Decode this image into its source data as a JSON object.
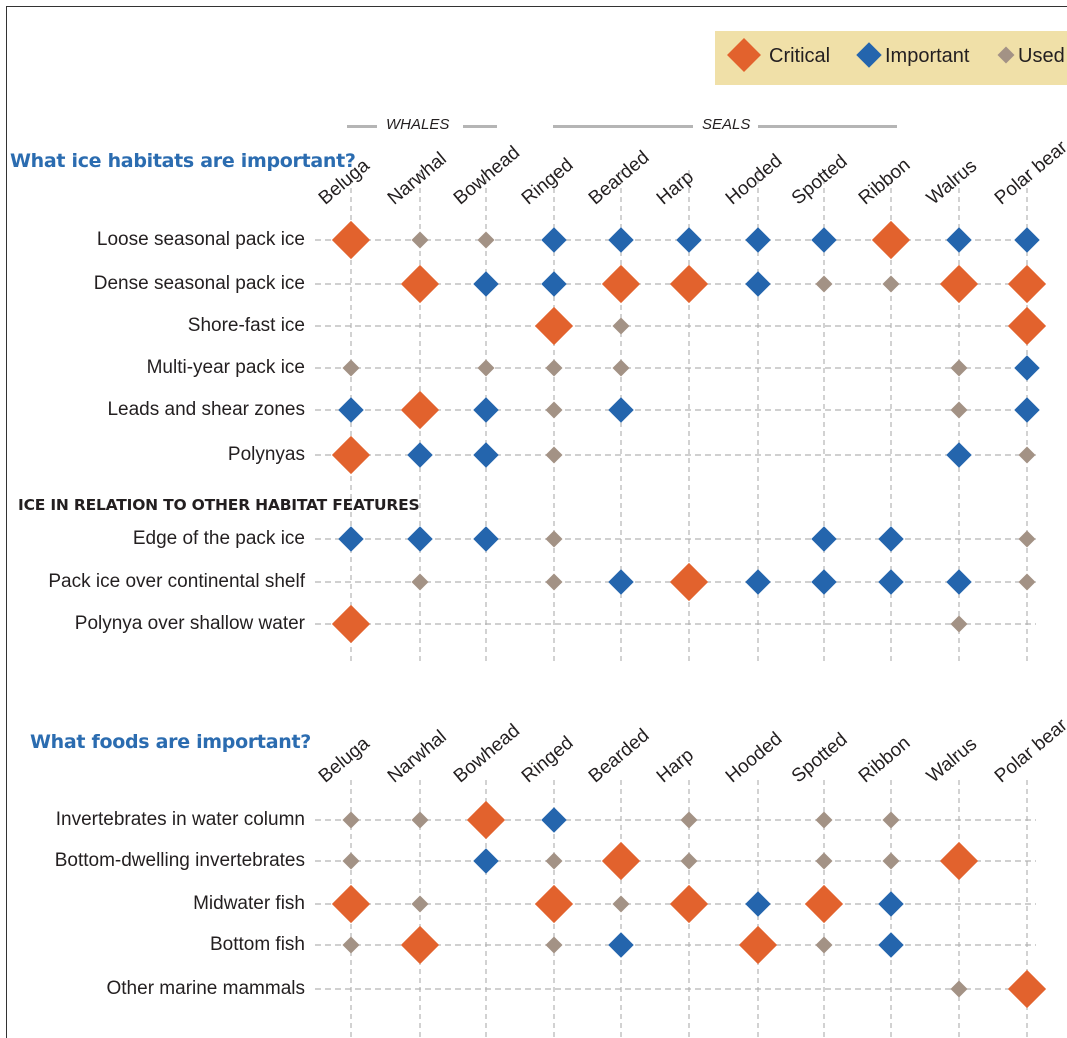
{
  "legend": [
    {
      "key": "critical",
      "label": "Critical"
    },
    {
      "key": "important",
      "label": "Important"
    },
    {
      "key": "used",
      "label": "Used"
    }
  ],
  "colors": {
    "critical": "#e2622d",
    "important": "#2465ad",
    "used": "#a39285",
    "gridline": "#b3b3b3",
    "title": "#2b6cb0",
    "legend_bg": "#f0e0a8"
  },
  "groups": [
    {
      "label": "WHALES",
      "span": [
        "Beluga",
        "Bowhead"
      ]
    },
    {
      "label": "SEALS",
      "span": [
        "Ringed",
        "Ribbon"
      ]
    }
  ],
  "chart_data": [
    {
      "type": "matrix",
      "title": "What ice habitats are important?",
      "columns": [
        "Beluga",
        "Narwhal",
        "Bowhead",
        "Ringed",
        "Bearded",
        "Harp",
        "Hooded",
        "Spotted",
        "Ribbon",
        "Walrus",
        "Polar bear"
      ],
      "sections": [
        {
          "heading": "",
          "rows": [
            {
              "label": "Loose seasonal pack ice",
              "values": [
                "critical",
                "used",
                "used",
                "important",
                "important",
                "important",
                "important",
                "important",
                "critical",
                "important",
                "important"
              ]
            },
            {
              "label": "Dense seasonal pack ice",
              "values": [
                null,
                "critical",
                "important",
                "important",
                "critical",
                "critical",
                "important",
                "used",
                "used",
                "critical",
                "critical"
              ]
            },
            {
              "label": "Shore-fast ice",
              "values": [
                null,
                null,
                null,
                "critical",
                "used",
                null,
                null,
                null,
                null,
                null,
                "critical"
              ]
            },
            {
              "label": "Multi-year pack ice",
              "values": [
                "used",
                null,
                "used",
                "used",
                "used",
                null,
                null,
                null,
                null,
                "used",
                "important"
              ]
            },
            {
              "label": "Leads and shear zones",
              "values": [
                "important",
                "critical",
                "important",
                "used",
                "important",
                null,
                null,
                null,
                null,
                "used",
                "important"
              ]
            },
            {
              "label": "Polynyas",
              "values": [
                "critical",
                "important",
                "important",
                "used",
                null,
                null,
                null,
                null,
                null,
                "important",
                "used"
              ]
            }
          ]
        },
        {
          "heading": "ICE IN RELATION TO OTHER HABITAT FEATURES",
          "rows": [
            {
              "label": "Edge of the pack ice",
              "values": [
                "important",
                "important",
                "important",
                "used",
                null,
                null,
                null,
                "important",
                "important",
                null,
                "used"
              ]
            },
            {
              "label": "Pack ice over continental shelf",
              "values": [
                null,
                "used",
                null,
                "used",
                "important",
                "critical",
                "important",
                "important",
                "important",
                "important",
                "used"
              ]
            },
            {
              "label": "Polynya over shallow water",
              "values": [
                "critical",
                null,
                null,
                null,
                null,
                null,
                null,
                null,
                null,
                "used",
                null
              ]
            }
          ]
        }
      ]
    },
    {
      "type": "matrix",
      "title": "What foods are important?",
      "columns": [
        "Beluga",
        "Narwhal",
        "Bowhead",
        "Ringed",
        "Bearded",
        "Harp",
        "Hooded",
        "Spotted",
        "Ribbon",
        "Walrus",
        "Polar bear"
      ],
      "sections": [
        {
          "heading": "",
          "rows": [
            {
              "label": "Invertebrates in water column",
              "values": [
                "used",
                "used",
                "critical",
                "important",
                null,
                "used",
                null,
                "used",
                "used",
                null,
                null
              ]
            },
            {
              "label": "Bottom-dwelling invertebrates",
              "values": [
                "used",
                null,
                "important",
                "used",
                "critical",
                "used",
                null,
                "used",
                "used",
                "critical",
                null
              ]
            },
            {
              "label": "Midwater fish",
              "values": [
                "critical",
                "used",
                null,
                "critical",
                "used",
                "critical",
                "important",
                "critical",
                "important",
                null,
                null
              ]
            },
            {
              "label": "Bottom fish",
              "values": [
                "used",
                "critical",
                null,
                "used",
                "important",
                null,
                "critical",
                "used",
                "important",
                null,
                null
              ]
            },
            {
              "label": "Other marine mammals",
              "values": [
                null,
                null,
                null,
                null,
                null,
                null,
                null,
                null,
                null,
                "used",
                "critical"
              ]
            }
          ]
        }
      ]
    }
  ]
}
